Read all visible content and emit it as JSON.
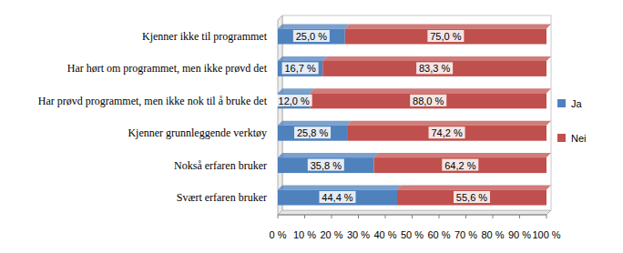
{
  "chart_data": {
    "type": "bar",
    "orientation": "horizontal",
    "stacked": true,
    "data_labels": true,
    "grid": false,
    "legend": "right",
    "categories": [
      "Kjenner ikke til programmet",
      "Har hørt om programmet, men ikke prøvd det",
      "Har prøvd programmet, men ikke nok til å bruke det",
      "Kjenner grunnleggende  verktøy",
      "Nokså erfaren bruker",
      "Svært erfaren bruker"
    ],
    "series": [
      {
        "name": "Ja",
        "color": "#4F81BD",
        "values": [
          25.0,
          16.7,
          12.0,
          25.8,
          35.8,
          44.4
        ],
        "value_labels": [
          "25,0 %",
          "16,7 %",
          "12,0 %",
          "25,8 %",
          "35,8 %",
          "44,4 %"
        ]
      },
      {
        "name": "Nei",
        "color": "#C0504D",
        "values": [
          75.0,
          83.3,
          88.0,
          74.2,
          64.2,
          55.6
        ],
        "value_labels": [
          "75,0 %",
          "83,3 %",
          "88,0 %",
          "74,2 %",
          "64,2 %",
          "55,6 %"
        ]
      }
    ],
    "xlim": [
      0,
      100
    ],
    "xticks": [
      {
        "value": 0,
        "label": "0 %"
      },
      {
        "value": 10,
        "label": "10 %"
      },
      {
        "value": 20,
        "label": "20 %"
      },
      {
        "value": 30,
        "label": "30 %"
      },
      {
        "value": 40,
        "label": "40 %"
      },
      {
        "value": 50,
        "label": "50 %"
      },
      {
        "value": 60,
        "label": "60 %"
      },
      {
        "value": 70,
        "label": "70 %"
      },
      {
        "value": 80,
        "label": "80 %"
      },
      {
        "value": 90,
        "label": "90 %"
      },
      {
        "value": 100,
        "label": "100 %"
      }
    ]
  }
}
